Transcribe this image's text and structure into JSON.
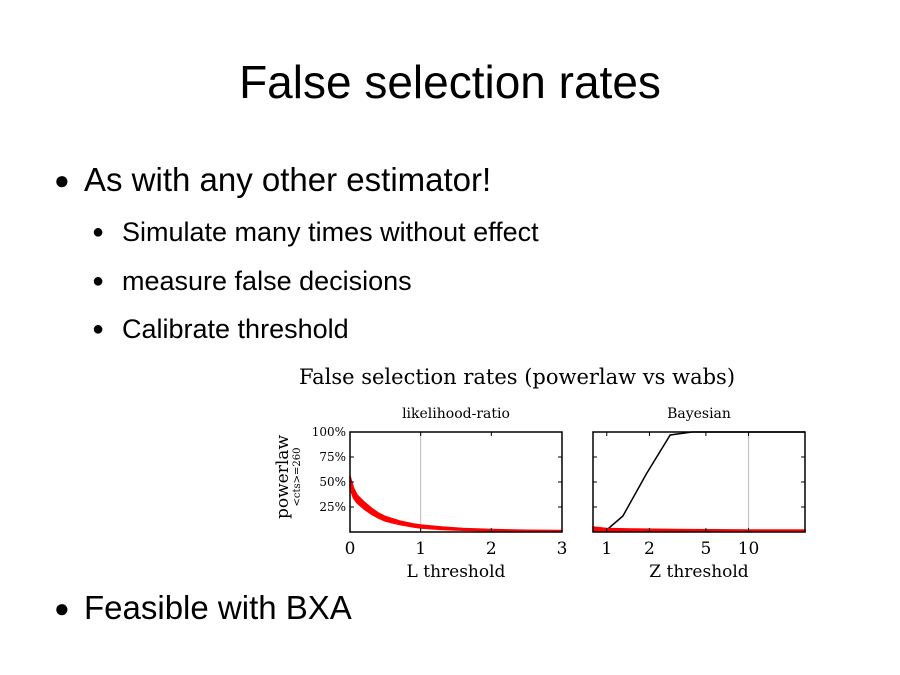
{
  "slide": {
    "title": "False selection rates",
    "bullets": [
      {
        "level": 1,
        "text": "As with any other estimator!"
      },
      {
        "level": 2,
        "text": "Simulate many times without effect"
      },
      {
        "level": 2,
        "text": "measure false decisions"
      },
      {
        "level": 2,
        "text": "Calibrate threshold"
      },
      {
        "level": 1,
        "text": "Feasible with BXA"
      }
    ]
  },
  "colors": {
    "red": "#ff0000",
    "black": "#000000",
    "grid": "#bbbbbb"
  },
  "chart_data": {
    "type": "line",
    "title": "False selection rates (powerlaw vs wabs)",
    "row_label": "powerlaw",
    "row_sublabel": "<cts>=260",
    "ytick_labels": [
      "100%",
      "75%",
      "50%",
      "25%"
    ],
    "ylim": [
      0,
      1
    ],
    "panels": [
      {
        "title": "likelihood-ratio",
        "xlabel": "L threshold",
        "xlim": [
          0,
          3
        ],
        "xticks": [
          0,
          1,
          2,
          3
        ],
        "xtick_labels": [
          "0",
          "1",
          "2",
          "3"
        ],
        "grid_x": [
          1
        ],
        "series": [
          {
            "color": "red",
            "band": true,
            "x": [
              0,
              0.05,
              0.1,
              0.2,
              0.3,
              0.4,
              0.5,
              0.7,
              0.9,
              1.0,
              1.3,
              1.6,
              2.0,
              2.5,
              3.0
            ],
            "lower": [
              0.44,
              0.34,
              0.29,
              0.23,
              0.18,
              0.14,
              0.11,
              0.075,
              0.05,
              0.04,
              0.025,
              0.018,
              0.012,
              0.008,
              0.006
            ],
            "upper": [
              0.56,
              0.44,
              0.37,
              0.3,
              0.24,
              0.19,
              0.155,
              0.11,
              0.08,
              0.07,
              0.05,
              0.035,
              0.025,
              0.018,
              0.015
            ]
          }
        ]
      },
      {
        "title": "Bayesian",
        "xlabel": "Z threshold",
        "xlim": [
          0.8,
          25
        ],
        "xscale": "log",
        "xticks": [
          1,
          2,
          5,
          10
        ],
        "xtick_labels": [
          "1",
          "2",
          "5",
          "10"
        ],
        "grid_x": [
          10
        ],
        "series": [
          {
            "color": "black",
            "band": false,
            "x": [
              0.8,
              1.0,
              1.3,
              1.9,
              2.8,
              4.0,
              6.0,
              10.0,
              25.0
            ],
            "y": [
              0.01,
              0.02,
              0.16,
              0.58,
              0.97,
              1.0,
              1.0,
              1.0,
              1.0
            ]
          },
          {
            "color": "red",
            "band": true,
            "x": [
              0.8,
              1.0,
              1.5,
              3.0,
              10.0,
              25.0
            ],
            "lower": [
              0.01,
              0.01,
              0.005,
              0.003,
              0.003,
              0.003
            ],
            "upper": [
              0.05,
              0.035,
              0.03,
              0.025,
              0.02,
              0.02
            ]
          }
        ]
      }
    ]
  }
}
